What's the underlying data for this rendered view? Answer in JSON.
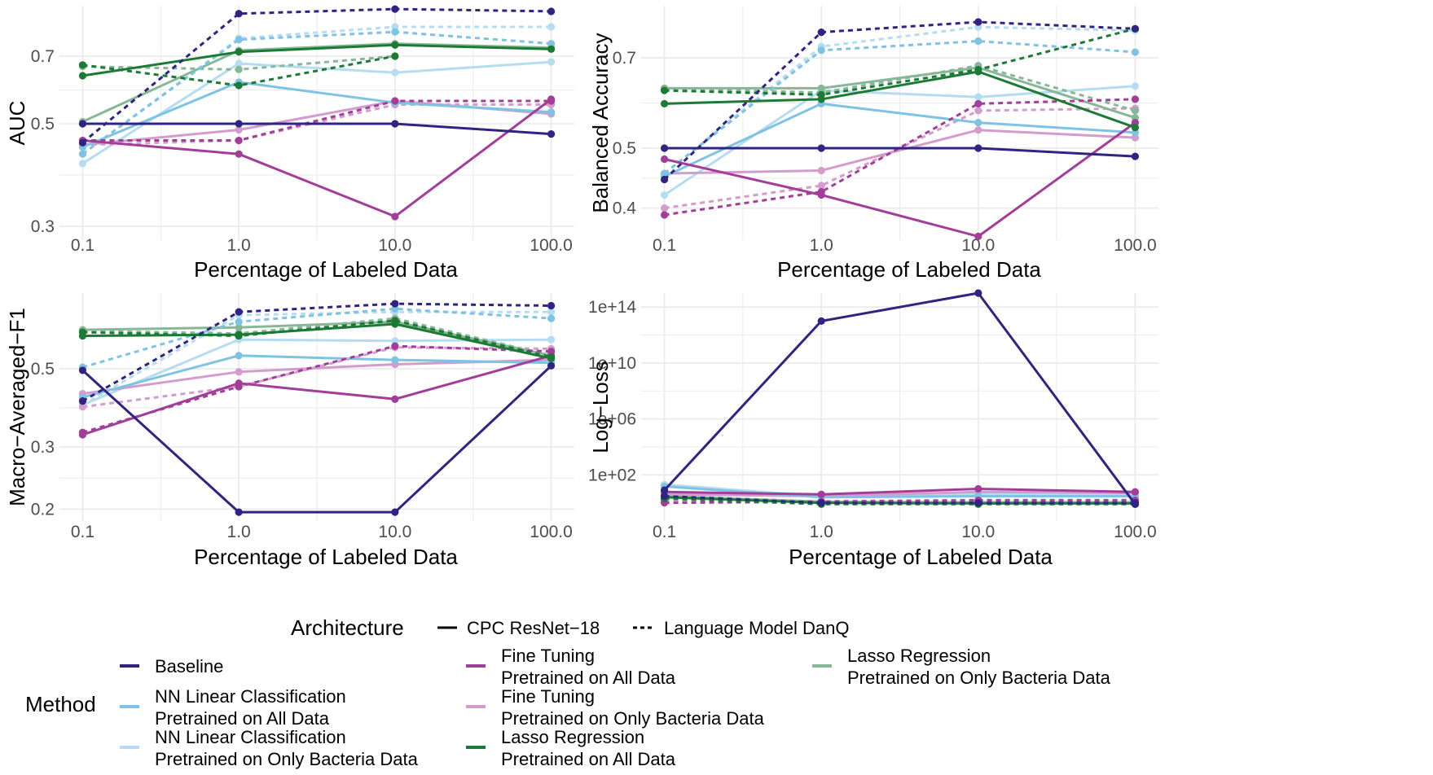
{
  "chart_data": [
    {
      "type": "line",
      "xscale": "log10",
      "xlabel": "Percentage of Labeled Data",
      "ylabel": "AUC",
      "yscale": "log10",
      "ylim": [
        0.28,
        0.9
      ],
      "yticks": [
        0.3,
        0.5,
        0.7
      ],
      "ytick_labels": [
        "0.3",
        "0.5",
        "0.7"
      ],
      "grid": true,
      "series": [
        {
          "key": "baseline",
          "arch": "cpc",
          "values": [
            0.5,
            0.5,
            0.5,
            0.475
          ]
        },
        {
          "key": "nn_all",
          "arch": "cpc",
          "values": [
            0.445,
            0.615,
            0.555,
            0.53
          ]
        },
        {
          "key": "nn_bac",
          "arch": "cpc",
          "values": [
            0.41,
            0.675,
            0.645,
            0.68
          ]
        },
        {
          "key": "ft_all",
          "arch": "cpc",
          "values": [
            0.46,
            0.43,
            0.315,
            0.565
          ]
        },
        {
          "key": "ft_bac",
          "arch": "cpc",
          "values": [
            0.45,
            0.485,
            0.56,
            0.525
          ]
        },
        {
          "key": "lasso_all",
          "arch": "cpc",
          "values": [
            0.635,
            0.715,
            0.74,
            0.725
          ]
        },
        {
          "key": "lasso_bac",
          "arch": "cpc",
          "values": [
            0.505,
            0.72,
            0.745,
            0.73
          ]
        },
        {
          "key": "baseline",
          "arch": "danq",
          "values": [
            0.455,
            0.865,
            0.885,
            0.875
          ]
        },
        {
          "key": "nn_all",
          "arch": "danq",
          "values": [
            0.43,
            0.76,
            0.79,
            0.745
          ]
        },
        {
          "key": "nn_bac",
          "arch": "danq",
          "values": [
            0.43,
            0.765,
            0.81,
            0.81
          ]
        },
        {
          "key": "ft_all",
          "arch": "danq",
          "values": [
            0.46,
            0.46,
            0.56,
            0.56
          ]
        },
        {
          "key": "ft_bac",
          "arch": "danq",
          "values": [
            0.45,
            0.46,
            0.55,
            0.55
          ]
        },
        {
          "key": "lasso_all",
          "arch": "danq",
          "values": [
            0.67,
            0.605,
            0.7,
            null
          ]
        },
        {
          "key": "lasso_bac",
          "arch": "danq",
          "values": [
            0.665,
            0.655,
            0.7,
            null
          ]
        }
      ]
    },
    {
      "type": "line",
      "xscale": "log10",
      "xlabel": "Percentage of Labeled Data",
      "ylabel": "Balanced Accuracy",
      "yscale": "log10",
      "ylim": [
        0.355,
        0.85
      ],
      "yticks": [
        0.4,
        0.5,
        0.7
      ],
      "ytick_labels": [
        "0.4",
        "0.5",
        "0.7"
      ],
      "grid": true,
      "series": [
        {
          "key": "baseline",
          "arch": "cpc",
          "values": [
            0.5,
            0.5,
            0.5,
            0.485
          ]
        },
        {
          "key": "nn_all",
          "arch": "cpc",
          "values": [
            0.45,
            0.59,
            0.55,
            0.53
          ]
        },
        {
          "key": "nn_bac",
          "arch": "cpc",
          "values": [
            0.42,
            0.62,
            0.605,
            0.63
          ]
        },
        {
          "key": "ft_all",
          "arch": "cpc",
          "values": [
            0.48,
            0.42,
            0.36,
            0.55
          ]
        },
        {
          "key": "ft_bac",
          "arch": "cpc",
          "values": [
            0.455,
            0.46,
            0.535,
            0.52
          ]
        },
        {
          "key": "lasso_all",
          "arch": "cpc",
          "values": [
            0.59,
            0.6,
            0.665,
            0.54
          ]
        },
        {
          "key": "lasso_bac",
          "arch": "cpc",
          "values": [
            0.625,
            0.625,
            0.675,
            0.56
          ]
        },
        {
          "key": "baseline",
          "arch": "danq",
          "values": [
            0.445,
            0.77,
            0.8,
            0.78
          ]
        },
        {
          "key": "nn_all",
          "arch": "danq",
          "values": [
            0.455,
            0.72,
            0.745,
            0.715
          ]
        },
        {
          "key": "nn_bac",
          "arch": "danq",
          "values": [
            0.455,
            0.73,
            0.785,
            0.775
          ]
        },
        {
          "key": "ft_all",
          "arch": "danq",
          "values": [
            0.39,
            0.425,
            0.59,
            0.6
          ]
        },
        {
          "key": "ft_bac",
          "arch": "danq",
          "values": [
            0.4,
            0.435,
            0.575,
            0.58
          ]
        },
        {
          "key": "lasso_all",
          "arch": "danq",
          "values": [
            0.62,
            0.61,
            0.67,
            0.78
          ]
        },
        {
          "key": "lasso_bac",
          "arch": "danq",
          "values": [
            0.625,
            0.615,
            0.68,
            0.575
          ]
        }
      ]
    },
    {
      "type": "line",
      "xscale": "log10",
      "xlabel": "Percentage of Labeled Data",
      "ylabel": "Macro−Averaged−F1",
      "yscale": "log10",
      "ylim": [
        0.185,
        0.82
      ],
      "yticks": [
        0.2,
        0.3,
        0.5
      ],
      "ytick_labels": [
        "0.2",
        "0.3",
        "0.5"
      ],
      "grid": true,
      "series": [
        {
          "key": "baseline",
          "arch": "cpc",
          "values": [
            0.495,
            0.196,
            0.196,
            0.51
          ]
        },
        {
          "key": "nn_all",
          "arch": "cpc",
          "values": [
            0.415,
            0.545,
            0.53,
            0.52
          ]
        },
        {
          "key": "nn_bac",
          "arch": "cpc",
          "values": [
            0.395,
            0.605,
            0.6,
            0.605
          ]
        },
        {
          "key": "ft_all",
          "arch": "cpc",
          "values": [
            0.325,
            0.455,
            0.41,
            0.545
          ]
        },
        {
          "key": "ft_bac",
          "arch": "cpc",
          "values": [
            0.425,
            0.49,
            0.515,
            0.53
          ]
        },
        {
          "key": "lasso_all",
          "arch": "cpc",
          "values": [
            0.62,
            0.625,
            0.67,
            0.535
          ]
        },
        {
          "key": "lasso_bac",
          "arch": "cpc",
          "values": [
            0.645,
            0.655,
            0.68,
            0.545
          ]
        },
        {
          "key": "baseline",
          "arch": "danq",
          "values": [
            0.405,
            0.725,
            0.765,
            0.755
          ]
        },
        {
          "key": "nn_all",
          "arch": "danq",
          "values": [
            0.505,
            0.68,
            0.74,
            0.695
          ]
        },
        {
          "key": "nn_bac",
          "arch": "danq",
          "values": [
            0.395,
            0.71,
            0.725,
            0.725
          ]
        },
        {
          "key": "ft_all",
          "arch": "danq",
          "values": [
            0.33,
            0.445,
            0.58,
            0.56
          ]
        },
        {
          "key": "ft_bac",
          "arch": "danq",
          "values": [
            0.39,
            0.445,
            0.575,
            0.57
          ]
        },
        {
          "key": "lasso_all",
          "arch": "danq",
          "values": [
            0.635,
            0.62,
            0.685,
            0.54
          ]
        },
        {
          "key": "lasso_bac",
          "arch": "danq",
          "values": [
            0.64,
            0.63,
            0.695,
            0.545
          ]
        }
      ]
    },
    {
      "type": "line",
      "xscale": "log10",
      "xlabel": "Percentage of Labeled Data",
      "ylabel": "Log−Loss",
      "yscale": "log10",
      "ylim": [
        0.05,
        1000000000000000.0
      ],
      "yticks": [
        100.0,
        1000000.0,
        10000000000.0,
        100000000000000.0
      ],
      "ytick_labels": [
        "1e+02",
        "1e+06",
        "1e+10",
        "1e+14"
      ],
      "grid": true,
      "series": [
        {
          "key": "baseline",
          "arch": "cpc",
          "values": [
            8,
            10000000000000.0,
            1000000000000000.0,
            0.8
          ]
        },
        {
          "key": "nn_all",
          "arch": "cpc",
          "values": [
            15,
            2.5,
            3,
            3
          ]
        },
        {
          "key": "nn_bac",
          "arch": "cpc",
          "values": [
            20,
            3,
            4,
            4
          ]
        },
        {
          "key": "ft_all",
          "arch": "cpc",
          "values": [
            6,
            4,
            10,
            6
          ]
        },
        {
          "key": "ft_bac",
          "arch": "cpc",
          "values": [
            4,
            3,
            6,
            5
          ]
        },
        {
          "key": "lasso_all",
          "arch": "cpc",
          "values": [
            2.5,
            1,
            0.9,
            0.9
          ]
        },
        {
          "key": "lasso_bac",
          "arch": "cpc",
          "values": [
            3,
            1.2,
            1.1,
            1.1
          ]
        },
        {
          "key": "baseline",
          "arch": "danq",
          "values": [
            3,
            1,
            1,
            1
          ]
        },
        {
          "key": "nn_all",
          "arch": "danq",
          "values": [
            3,
            1,
            1.5,
            1
          ]
        },
        {
          "key": "nn_bac",
          "arch": "danq",
          "values": [
            3.5,
            1.2,
            1.2,
            1.2
          ]
        },
        {
          "key": "ft_all",
          "arch": "danq",
          "values": [
            1,
            1.2,
            1.5,
            1.5
          ]
        },
        {
          "key": "ft_bac",
          "arch": "danq",
          "values": [
            1.2,
            1.3,
            1.6,
            1.6
          ]
        },
        {
          "key": "lasso_all",
          "arch": "danq",
          "values": [
            2,
            0.8,
            0.8,
            0.8
          ]
        },
        {
          "key": "lasso_bac",
          "arch": "danq",
          "values": [
            2,
            0.9,
            0.9,
            0.9
          ]
        }
      ]
    }
  ],
  "x": [
    0.1,
    1.0,
    10.0,
    100.0
  ],
  "x_tick_labels": [
    "0.1",
    "1.0",
    "10.0",
    "100.0"
  ],
  "colors": {
    "baseline": "#2f2483",
    "nn_all": "#7ec2e4",
    "nn_bac": "#b5ddf1",
    "ft_all": "#a23e99",
    "ft_bac": "#d49ccd",
    "lasso_all": "#1b7a34",
    "lasso_bac": "#86b898",
    "grid": "#ebebeb"
  },
  "legend": {
    "architecture_title": "Architecture",
    "architectures": [
      {
        "key": "cpc",
        "label": "CPC ResNet−18",
        "linetype": "solid"
      },
      {
        "key": "danq",
        "label": "Language Model DanQ",
        "linetype": "dashed"
      }
    ],
    "method_title": "Method",
    "methods": [
      {
        "key": "baseline",
        "lines": [
          "Baseline"
        ]
      },
      {
        "key": "nn_all",
        "lines": [
          "NN Linear Classification",
          "Pretrained on All Data"
        ]
      },
      {
        "key": "nn_bac",
        "lines": [
          "NN Linear Classification",
          "Pretrained on Only Bacteria Data"
        ]
      },
      {
        "key": "ft_all",
        "lines": [
          "Fine Tuning",
          "Pretrained on All Data"
        ]
      },
      {
        "key": "ft_bac",
        "lines": [
          "Fine Tuning",
          "Pretrained on Only Bacteria Data"
        ]
      },
      {
        "key": "lasso_all",
        "lines": [
          "Lasso Regression",
          "Pretrained on All Data"
        ]
      },
      {
        "key": "lasso_bac",
        "lines": [
          "Lasso Regression",
          "Pretrained on Only Bacteria Data"
        ]
      }
    ]
  }
}
